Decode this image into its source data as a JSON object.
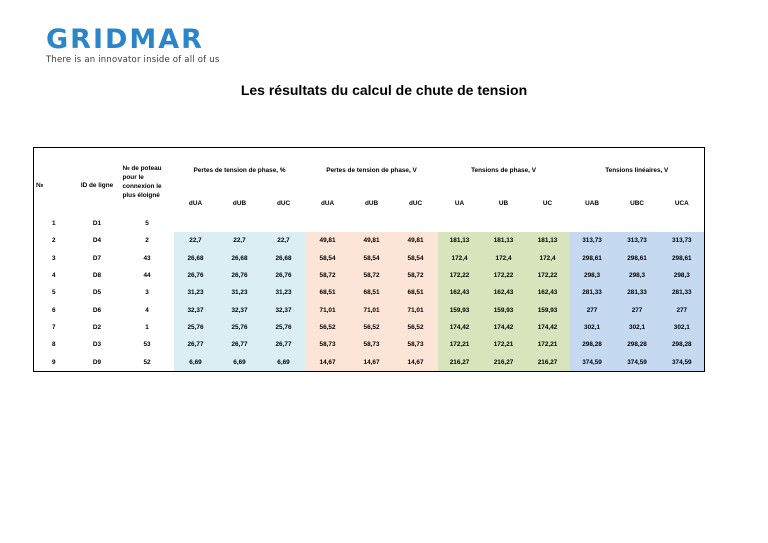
{
  "logo": {
    "name": "GRIDMAR",
    "tagline": "There is an innovator inside of all  of us"
  },
  "title": "Les résultats du calcul de chute de tension",
  "table": {
    "header": {
      "n": "№",
      "id": "ID de ligne",
      "poteaux": "№ de poteau pour le connexion le plus éloigné",
      "group_pct": "Pertes de tension de phase, %",
      "group_v": "Pertes de tension de phase, V",
      "group_phase": "Tensions de phase, V",
      "group_lin": "Tensions linéaires, V",
      "sub": [
        "dUA",
        "dUB",
        "dUC",
        "dUA",
        "dUB",
        "dUC",
        "UA",
        "UB",
        "UC",
        "UAB",
        "UBC",
        "UCA"
      ]
    },
    "rows": [
      {
        "n": "1",
        "id": "D1",
        "pot": "5",
        "vals": [
          "",
          "",
          "",
          "",
          "",
          "",
          "",
          "",
          "",
          "",
          "",
          ""
        ]
      },
      {
        "n": "2",
        "id": "D4",
        "pot": "2",
        "vals": [
          "22,7",
          "22,7",
          "22,7",
          "49,81",
          "49,81",
          "49,81",
          "181,13",
          "181,13",
          "181,13",
          "313,73",
          "313,73",
          "313,73"
        ]
      },
      {
        "n": "3",
        "id": "D7",
        "pot": "43",
        "vals": [
          "26,68",
          "26,68",
          "26,68",
          "58,54",
          "58,54",
          "58,54",
          "172,4",
          "172,4",
          "172,4",
          "298,61",
          "298,61",
          "298,61"
        ]
      },
      {
        "n": "4",
        "id": "D8",
        "pot": "44",
        "vals": [
          "26,76",
          "26,76",
          "26,76",
          "58,72",
          "58,72",
          "58,72",
          "172,22",
          "172,22",
          "172,22",
          "298,3",
          "298,3",
          "298,3"
        ]
      },
      {
        "n": "5",
        "id": "D5",
        "pot": "3",
        "vals": [
          "31,23",
          "31,23",
          "31,23",
          "68,51",
          "68,51",
          "68,51",
          "162,43",
          "162,43",
          "162,43",
          "281,33",
          "281,33",
          "281,33"
        ]
      },
      {
        "n": "6",
        "id": "D6",
        "pot": "4",
        "vals": [
          "32,37",
          "32,37",
          "32,37",
          "71,01",
          "71,01",
          "71,01",
          "159,93",
          "159,93",
          "159,93",
          "277",
          "277",
          "277"
        ]
      },
      {
        "n": "7",
        "id": "D2",
        "pot": "1",
        "vals": [
          "25,76",
          "25,76",
          "25,76",
          "56,52",
          "56,52",
          "56,52",
          "174,42",
          "174,42",
          "174,42",
          "302,1",
          "302,1",
          "302,1"
        ]
      },
      {
        "n": "8",
        "id": "D3",
        "pot": "53",
        "vals": [
          "26,77",
          "26,77",
          "26,77",
          "58,73",
          "58,73",
          "58,73",
          "172,21",
          "172,21",
          "172,21",
          "298,28",
          "298,28",
          "298,28"
        ]
      },
      {
        "n": "9",
        "id": "D9",
        "pot": "52",
        "vals": [
          "6,69",
          "6,69",
          "6,69",
          "14,67",
          "14,67",
          "14,67",
          "216,27",
          "216,27",
          "216,27",
          "374,59",
          "374,59",
          "374,59"
        ]
      }
    ]
  }
}
